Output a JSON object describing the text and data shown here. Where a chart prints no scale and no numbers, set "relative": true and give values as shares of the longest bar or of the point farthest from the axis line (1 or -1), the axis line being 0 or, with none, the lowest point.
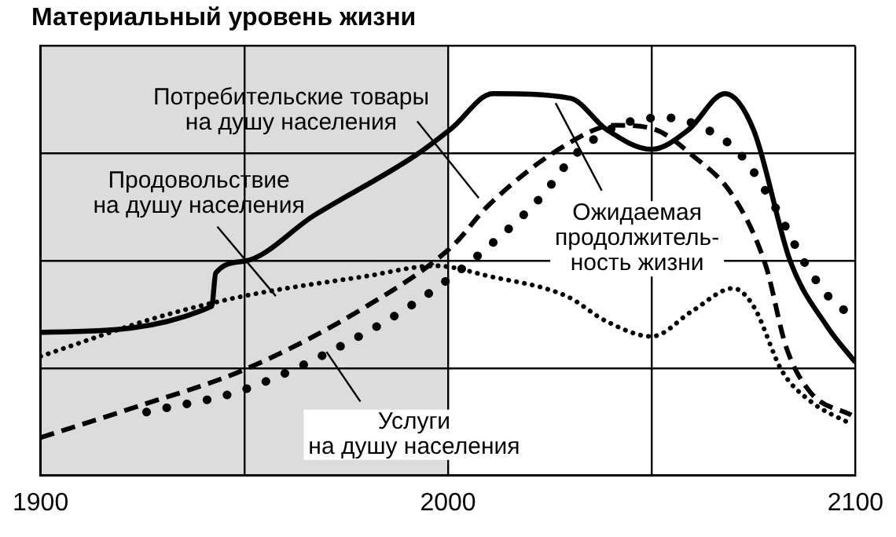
{
  "chart_data": {
    "type": "line",
    "title": "Материальный уровень жизни",
    "relative": true,
    "xlim": [
      1900,
      2100
    ],
    "xticks": [
      1900,
      {
        "value": 1950,
        "label": null
      },
      2000,
      {
        "value": 2050,
        "label": null
      },
      2100
    ],
    "grid": true,
    "legend": false,
    "marker": "none",
    "bands": [
      {
        "axis": "x",
        "from": 1900,
        "to": 2000,
        "color": "#dcdcdc"
      }
    ],
    "series": [
      {
        "color": "#000000",
        "line_style": "solid",
        "x": [
          1900,
          1942,
          1943,
          1950,
          1967,
          1992,
          2001,
          2011,
          2030,
          2039,
          2050,
          2059,
          2068,
          2075,
          2084,
          2093,
          2100
        ],
        "values": [
          0.375,
          0.443,
          0.53,
          0.561,
          0.68,
          0.838,
          0.91,
          1.0,
          0.988,
          0.905,
          0.854,
          0.905,
          1.0,
          0.905,
          0.561,
          0.391,
          0.296
        ]
      },
      {
        "color": "#000000",
        "line_style": "dashed",
        "x": [
          1900,
          1923,
          1950,
          1980,
          2001,
          2010,
          2029,
          2041,
          2050,
          2060,
          2070,
          2078,
          2083,
          2089,
          2099
        ],
        "values": [
          0.099,
          0.178,
          0.277,
          0.443,
          0.6,
          0.708,
          0.866,
          0.917,
          0.909,
          0.838,
          0.731,
          0.549,
          0.336,
          0.217,
          0.158
        ]
      },
      {
        "color": "#000000",
        "line_style": "dotted",
        "x": [
          1900,
          1929,
          1950,
          1980,
          1997,
          2010,
          2029,
          2039,
          2050,
          2060,
          2070,
          2075,
          2082,
          2089,
          2099
        ],
        "values": [
          0.312,
          0.415,
          0.47,
          0.522,
          0.549,
          0.522,
          0.47,
          0.403,
          0.364,
          0.431,
          0.49,
          0.443,
          0.273,
          0.194,
          0.134
        ]
      },
      {
        "color": "#000000",
        "line_style": "dotted",
        "x": [
          1926,
          1950,
          1980,
          1996,
          2010,
          2023,
          2031,
          2042,
          2053,
          2063,
          2072,
          2080,
          2088,
          2095,
          2099
        ],
        "values": [
          0.166,
          0.225,
          0.375,
          0.482,
          0.6,
          0.731,
          0.838,
          0.917,
          0.937,
          0.909,
          0.838,
          0.708,
          0.549,
          0.45,
          0.423
        ]
      }
    ],
    "annotations": [
      "Потребительские товары\nна душу населения",
      "Продовольствие\nна душу населения",
      "Ожидаемая\nпродолжитель-\nность жизни",
      "Услуги\nна душу населения"
    ]
  }
}
